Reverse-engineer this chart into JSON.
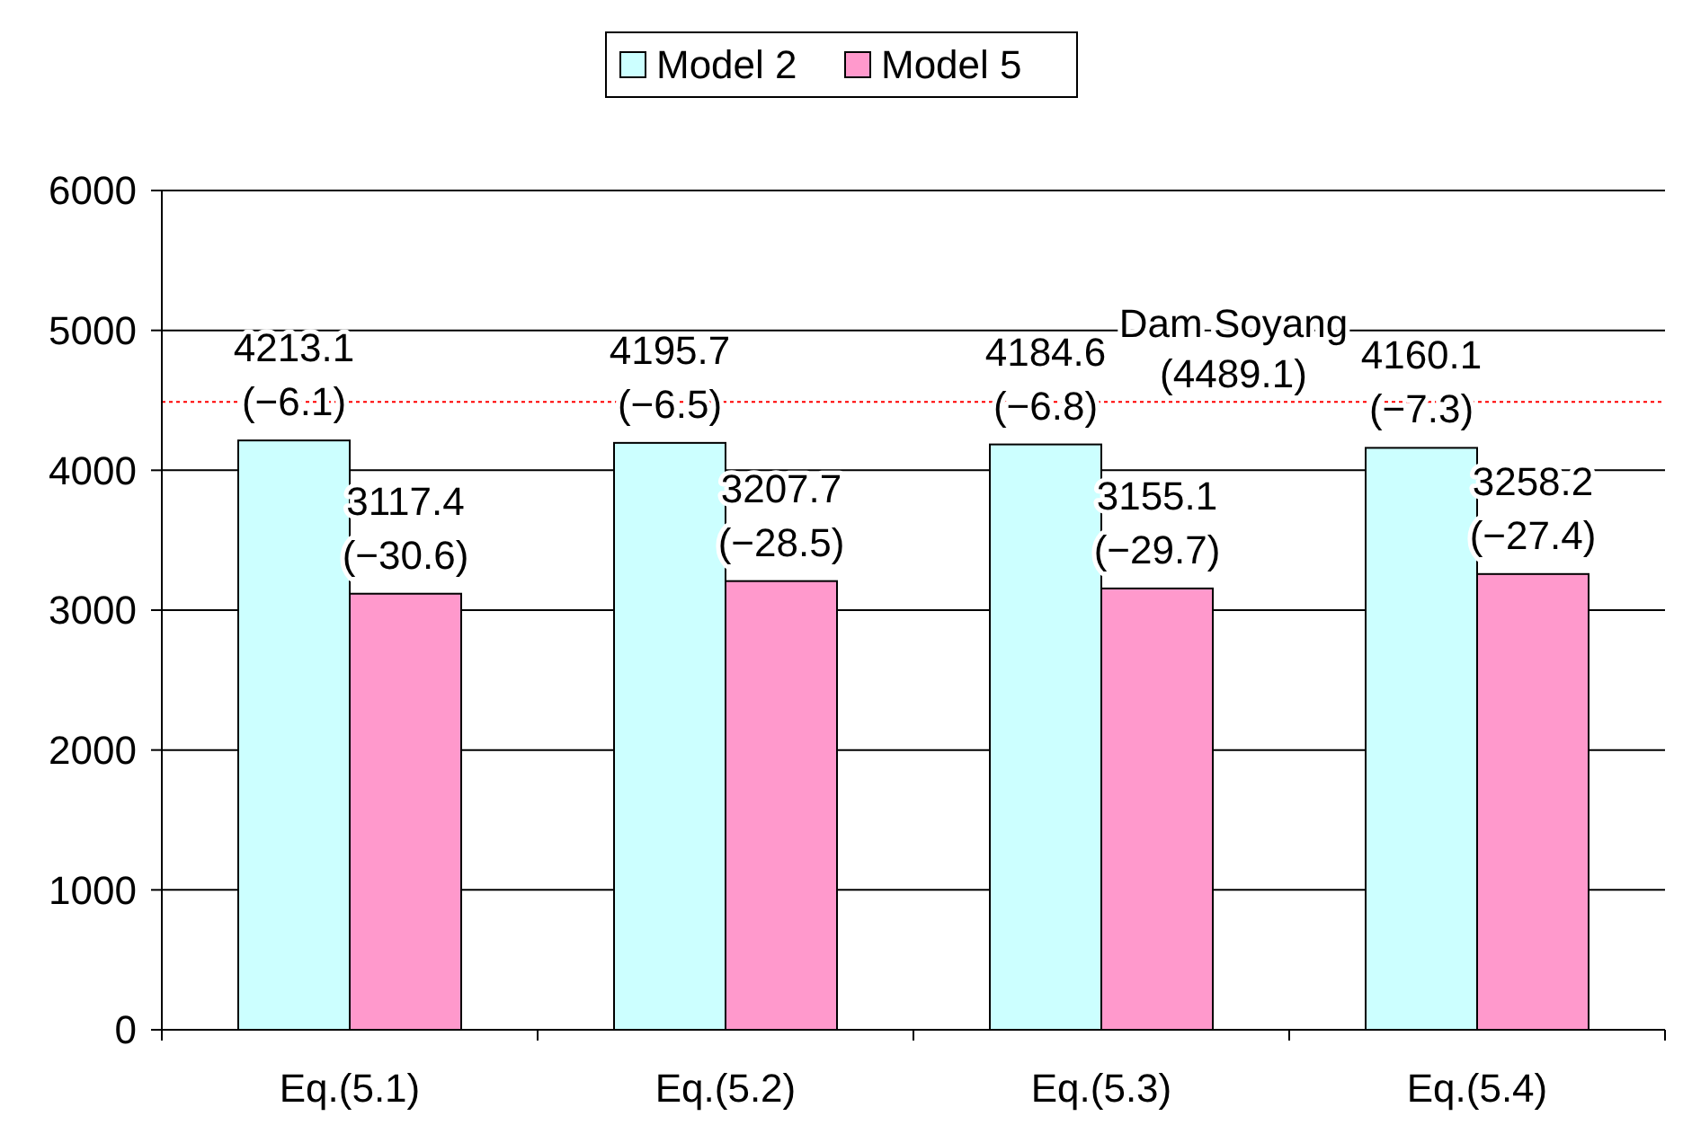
{
  "chart_data": {
    "type": "bar",
    "categories": [
      "Eq.(5.1)",
      "Eq.(5.2)",
      "Eq.(5.3)",
      "Eq.(5.4)"
    ],
    "series": [
      {
        "name": "Model 2",
        "color": "#ccffff",
        "values": [
          4213.1,
          4195.7,
          4184.6,
          4160.1
        ],
        "value_labels": [
          "4213.1 (−6.1)",
          "4195.7 (−6.5)",
          "4184.6 (−6.8)",
          "4160.1 (−7.3)"
        ]
      },
      {
        "name": "Model 5",
        "color": "#ff99cc",
        "values": [
          3117.4,
          3207.7,
          3155.1,
          3258.2
        ],
        "value_labels": [
          "3117.4 (−30.6)",
          "3207.7 (−28.5)",
          "3155.1 (−29.7)",
          "3258.2 (−27.4)"
        ]
      }
    ],
    "ylim": [
      0,
      6000
    ],
    "yticks": [
      0,
      1000,
      2000,
      3000,
      4000,
      5000,
      6000
    ],
    "grid": "y",
    "legend": "top",
    "ref_lines": [
      {
        "axis": "y",
        "value": 4489.1,
        "label": "Dam Soyang (4489.1)",
        "color": "#ff0000",
        "line_style": "dotted"
      }
    ]
  }
}
